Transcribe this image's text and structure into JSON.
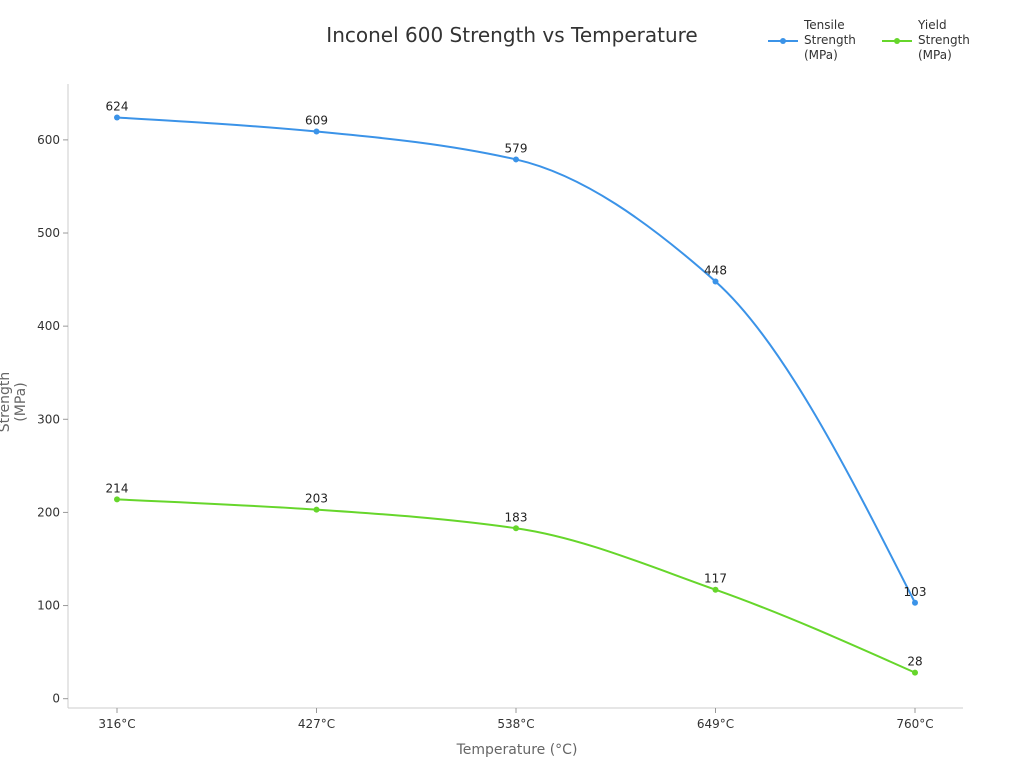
{
  "chart_data": {
    "type": "line",
    "title": "Inconel 600 Strength vs Temperature",
    "xlabel": "Temperature (°C)",
    "ylabel": "Strength (MPa)",
    "categories": [
      "316°C",
      "427°C",
      "538°C",
      "649°C",
      "760°C"
    ],
    "yticks": [
      0,
      100,
      200,
      300,
      400,
      500,
      600
    ],
    "ylim": [
      -10,
      660
    ],
    "grid": false,
    "legend_position": "top-right",
    "series": [
      {
        "name": "Tensile Strength (MPa)",
        "color": "#3b93e8",
        "values": [
          624,
          609,
          579,
          448,
          103
        ]
      },
      {
        "name": "Yield Strength (MPa)",
        "color": "#66d62b",
        "values": [
          214,
          203,
          183,
          117,
          28
        ]
      }
    ]
  }
}
